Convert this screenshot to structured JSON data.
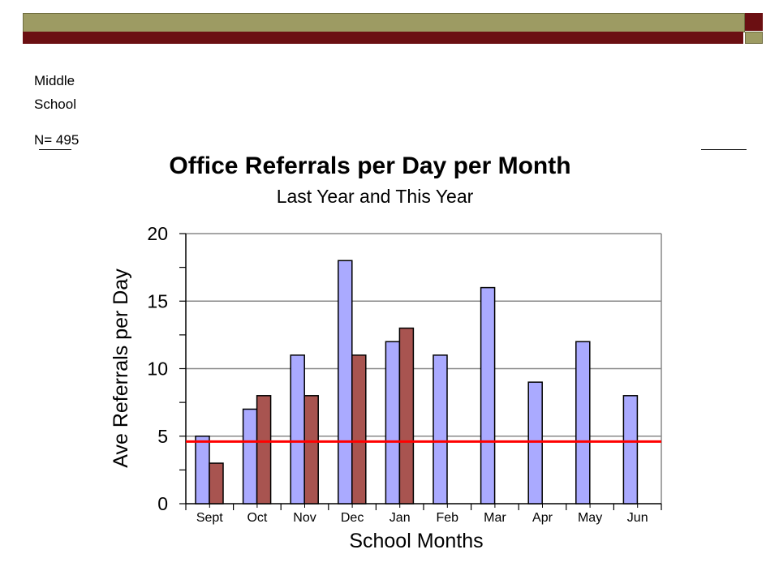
{
  "slide": {
    "school_line1": "Middle",
    "school_line2": "School",
    "count_text": "N= 495",
    "colors": {
      "top_bar": "#9d9b63",
      "accent_bar": "#6b0f12"
    }
  },
  "chart_data": {
    "type": "bar",
    "title": "Office Referrals per Day per Month",
    "subtitle": "Last Year and This Year",
    "xlabel": "School Months",
    "ylabel": "Ave Referrals per Day",
    "categories": [
      "Sept",
      "Oct",
      "Nov",
      "Dec",
      "Jan",
      "Feb",
      "Mar",
      "Apr",
      "May",
      "Jun"
    ],
    "series": [
      {
        "values": [
          5,
          7,
          11,
          18,
          12,
          11,
          16,
          9,
          12,
          8
        ],
        "color": "#aaaaff"
      },
      {
        "values": [
          3,
          8,
          8,
          11,
          13,
          0,
          0,
          0,
          0,
          0
        ],
        "color": "#a85450"
      }
    ],
    "reference_line": {
      "value": 4.6,
      "color": "#ff0000"
    },
    "ylim": [
      0,
      20
    ],
    "yticks": [
      0,
      5,
      10,
      15,
      20
    ],
    "grid": true,
    "legend": "none"
  }
}
